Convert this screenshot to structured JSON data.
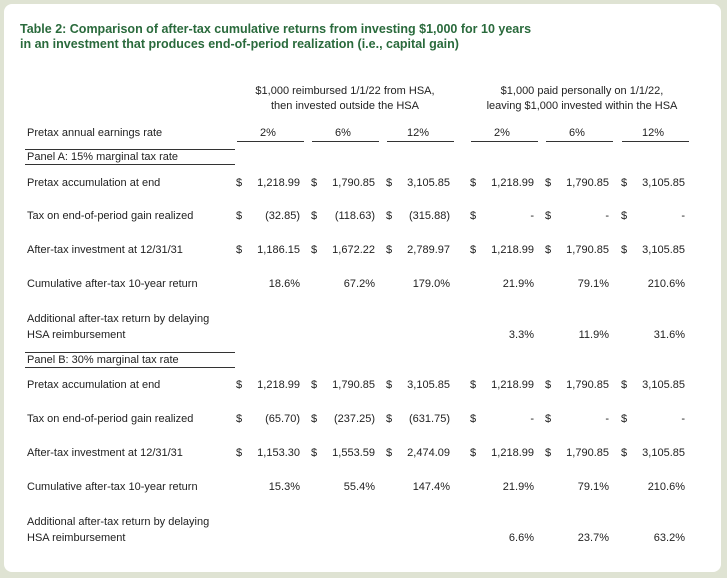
{
  "title_lines": [
    "Table 2: Comparison of after-tax cumulative returns from investing $1,000 for 10 years",
    "in an investment that produces end-of-period realization (i.e., capital gain)"
  ],
  "group_headers": [
    {
      "lines": [
        "$1,000 reimbursed 1/1/22 from HSA,",
        "then invested outside the HSA"
      ]
    },
    {
      "lines": [
        "$1,000 paid personally on 1/1/22,",
        "leaving $1,000 invested within the HSA"
      ]
    }
  ],
  "rate_row": {
    "label": "Pretax annual earnings rate",
    "cells": [
      "2%",
      "6%",
      "12%",
      "2%",
      "6%",
      "12%"
    ]
  },
  "panels": [
    {
      "heading": "Panel A: 15% marginal tax rate",
      "rows": [
        {
          "label": [
            "Pretax accumulation at end"
          ],
          "cells": [
            "$ 1,218.99",
            "$ 1,790.85",
            "$ 3,105.85",
            "$ 1,218.99",
            "$ 1,790.85",
            "$ 3,105.85"
          ]
        },
        {
          "label": [
            "Tax on end-of-period gain realized"
          ],
          "cells": [
            "$ (32.85)",
            "$ (118.63)",
            "$ (315.88)",
            "$ -",
            "$ -",
            "$ -"
          ]
        },
        {
          "label": [
            "After-tax investment at 12/31/31"
          ],
          "cells": [
            "$ 1,186.15",
            "$ 1,672.22",
            "$ 2,789.97",
            "$ 1,218.99",
            "$ 1,790.85",
            "$ 3,105.85"
          ]
        },
        {
          "label": [
            "Cumulative after-tax 10-year return"
          ],
          "cells": [
            "18.6%",
            "67.2%",
            "179.0%",
            "21.9%",
            "79.1%",
            "210.6%"
          ]
        },
        {
          "label": [
            "Additional after-tax return by delaying",
            "HSA reimbursement"
          ],
          "cells": [
            null,
            null,
            null,
            "3.3%",
            "11.9%",
            "31.6%"
          ]
        }
      ]
    },
    {
      "heading": "Panel B: 30% marginal tax rate",
      "rows": [
        {
          "label": [
            "Pretax accumulation at end"
          ],
          "cells": [
            "$ 1,218.99",
            "$ 1,790.85",
            "$ 3,105.85",
            "$ 1,218.99",
            "$ 1,790.85",
            "$ 3,105.85"
          ]
        },
        {
          "label": [
            "Tax on end-of-period gain realized"
          ],
          "cells": [
            "$ (65.70)",
            "$ (237.25)",
            "$ (631.75)",
            "$ -",
            "$ -",
            "$ -"
          ]
        },
        {
          "label": [
            "After-tax investment at 12/31/31"
          ],
          "cells": [
            "$ 1,153.30",
            "$ 1,553.59",
            "$ 2,474.09",
            "$ 1,218.99",
            "$ 1,790.85",
            "$ 3,105.85"
          ]
        },
        {
          "label": [
            "Cumulative after-tax 10-year return"
          ],
          "cells": [
            "15.3%",
            "55.4%",
            "147.4%",
            "21.9%",
            "79.1%",
            "210.6%"
          ]
        },
        {
          "label": [
            "Additional after-tax return by delaying",
            "HSA reimbursement"
          ],
          "cells": [
            null,
            null,
            null,
            "6.6%",
            "23.7%",
            "63.2%"
          ]
        }
      ]
    }
  ]
}
